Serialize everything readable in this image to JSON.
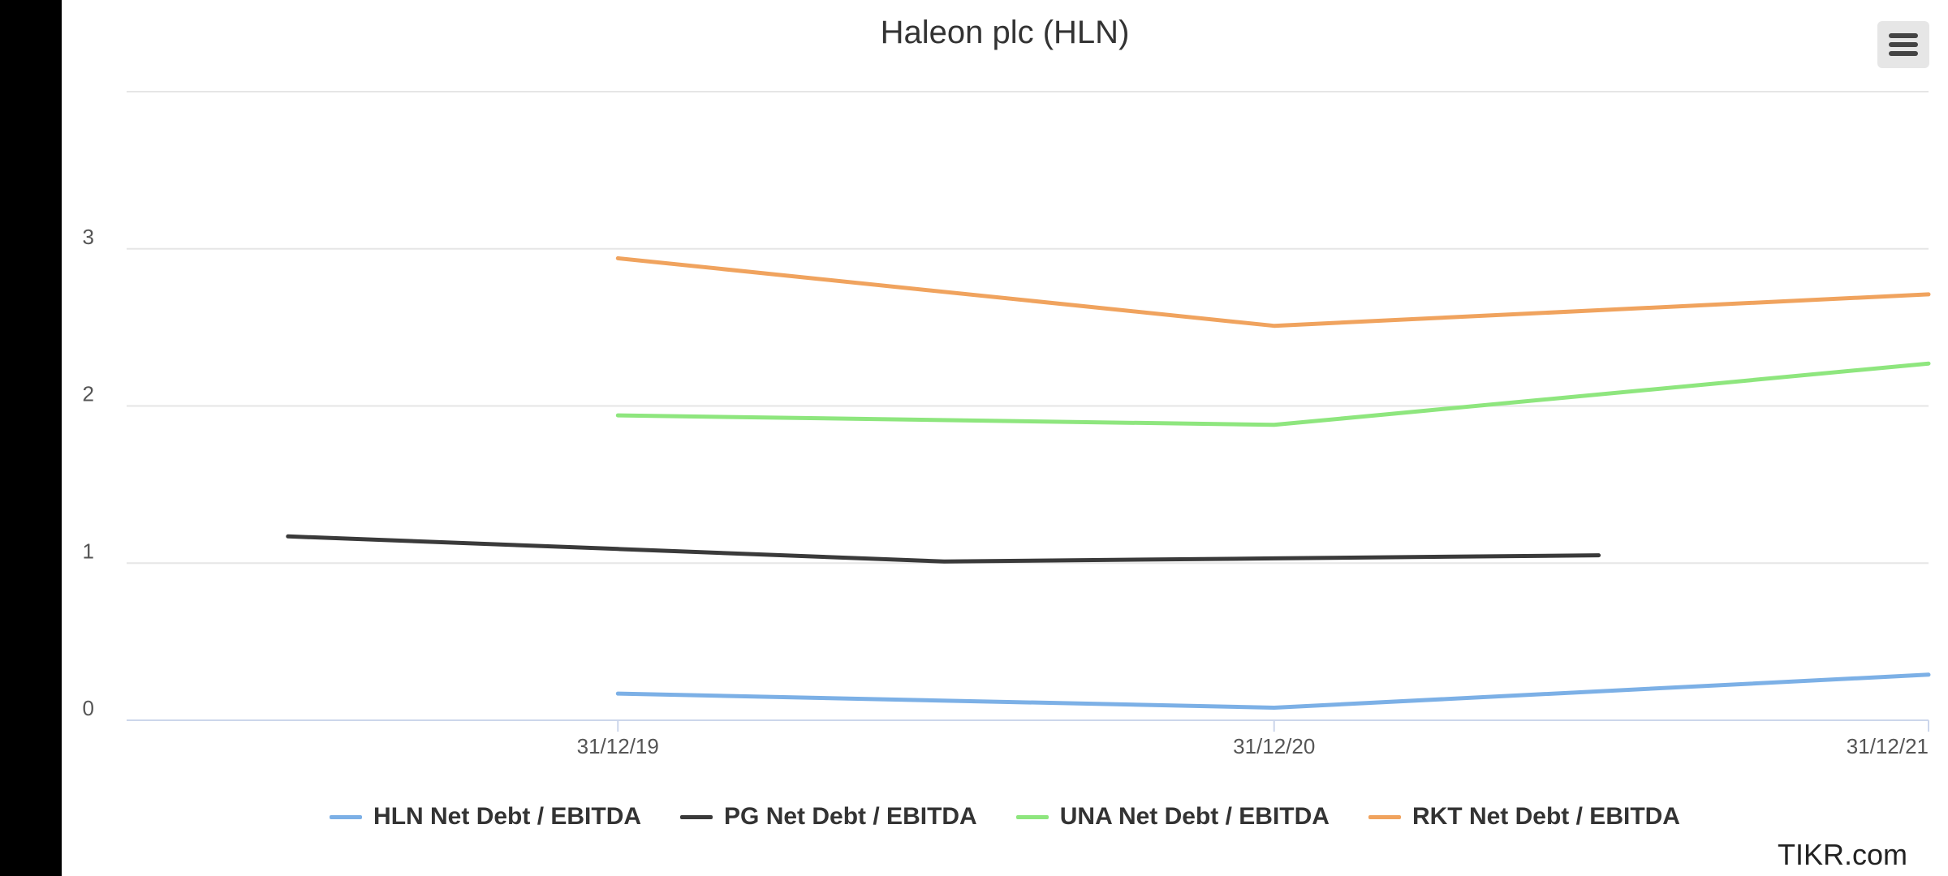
{
  "chart_data": {
    "type": "line",
    "title": "Haleon plc (HLN)",
    "xlabel": "",
    "ylabel": "",
    "x_ticks": [
      "31/12/19",
      "31/12/20",
      "31/12/21"
    ],
    "y_ticks": [
      "0",
      "1",
      "2",
      "3"
    ],
    "ylim": [
      0,
      4
    ],
    "grid": true,
    "legend_position": "bottom",
    "series": [
      {
        "name": "HLN Net Debt / EBITDA",
        "color": "#7cb0e6",
        "points": [
          {
            "x": "2019-12-31",
            "y": 0.17
          },
          {
            "x": "2020-12-31",
            "y": 0.08
          },
          {
            "x": "2021-12-31",
            "y": 0.29
          }
        ]
      },
      {
        "name": "PG Net Debt / EBITDA",
        "color": "#3a3a3a",
        "points": [
          {
            "x": "2019-06-30",
            "y": 1.17
          },
          {
            "x": "2019-12-31",
            "y": 1.09
          },
          {
            "x": "2020-06-30",
            "y": 1.01
          },
          {
            "x": "2020-12-31",
            "y": 1.03
          },
          {
            "x": "2021-06-30",
            "y": 1.05
          }
        ]
      },
      {
        "name": "UNA Net Debt / EBITDA",
        "color": "#8ee67e",
        "points": [
          {
            "x": "2019-12-31",
            "y": 1.94
          },
          {
            "x": "2020-12-31",
            "y": 1.88
          },
          {
            "x": "2021-12-31",
            "y": 2.27
          }
        ]
      },
      {
        "name": "RKT Net Debt / EBITDA",
        "color": "#f0a35e",
        "points": [
          {
            "x": "2019-12-31",
            "y": 2.94
          },
          {
            "x": "2020-12-31",
            "y": 2.51
          },
          {
            "x": "2021-12-31",
            "y": 2.71
          }
        ]
      }
    ]
  },
  "page": {
    "credit": "TIKR.com",
    "menu_icon": "hamburger-menu-icon"
  }
}
